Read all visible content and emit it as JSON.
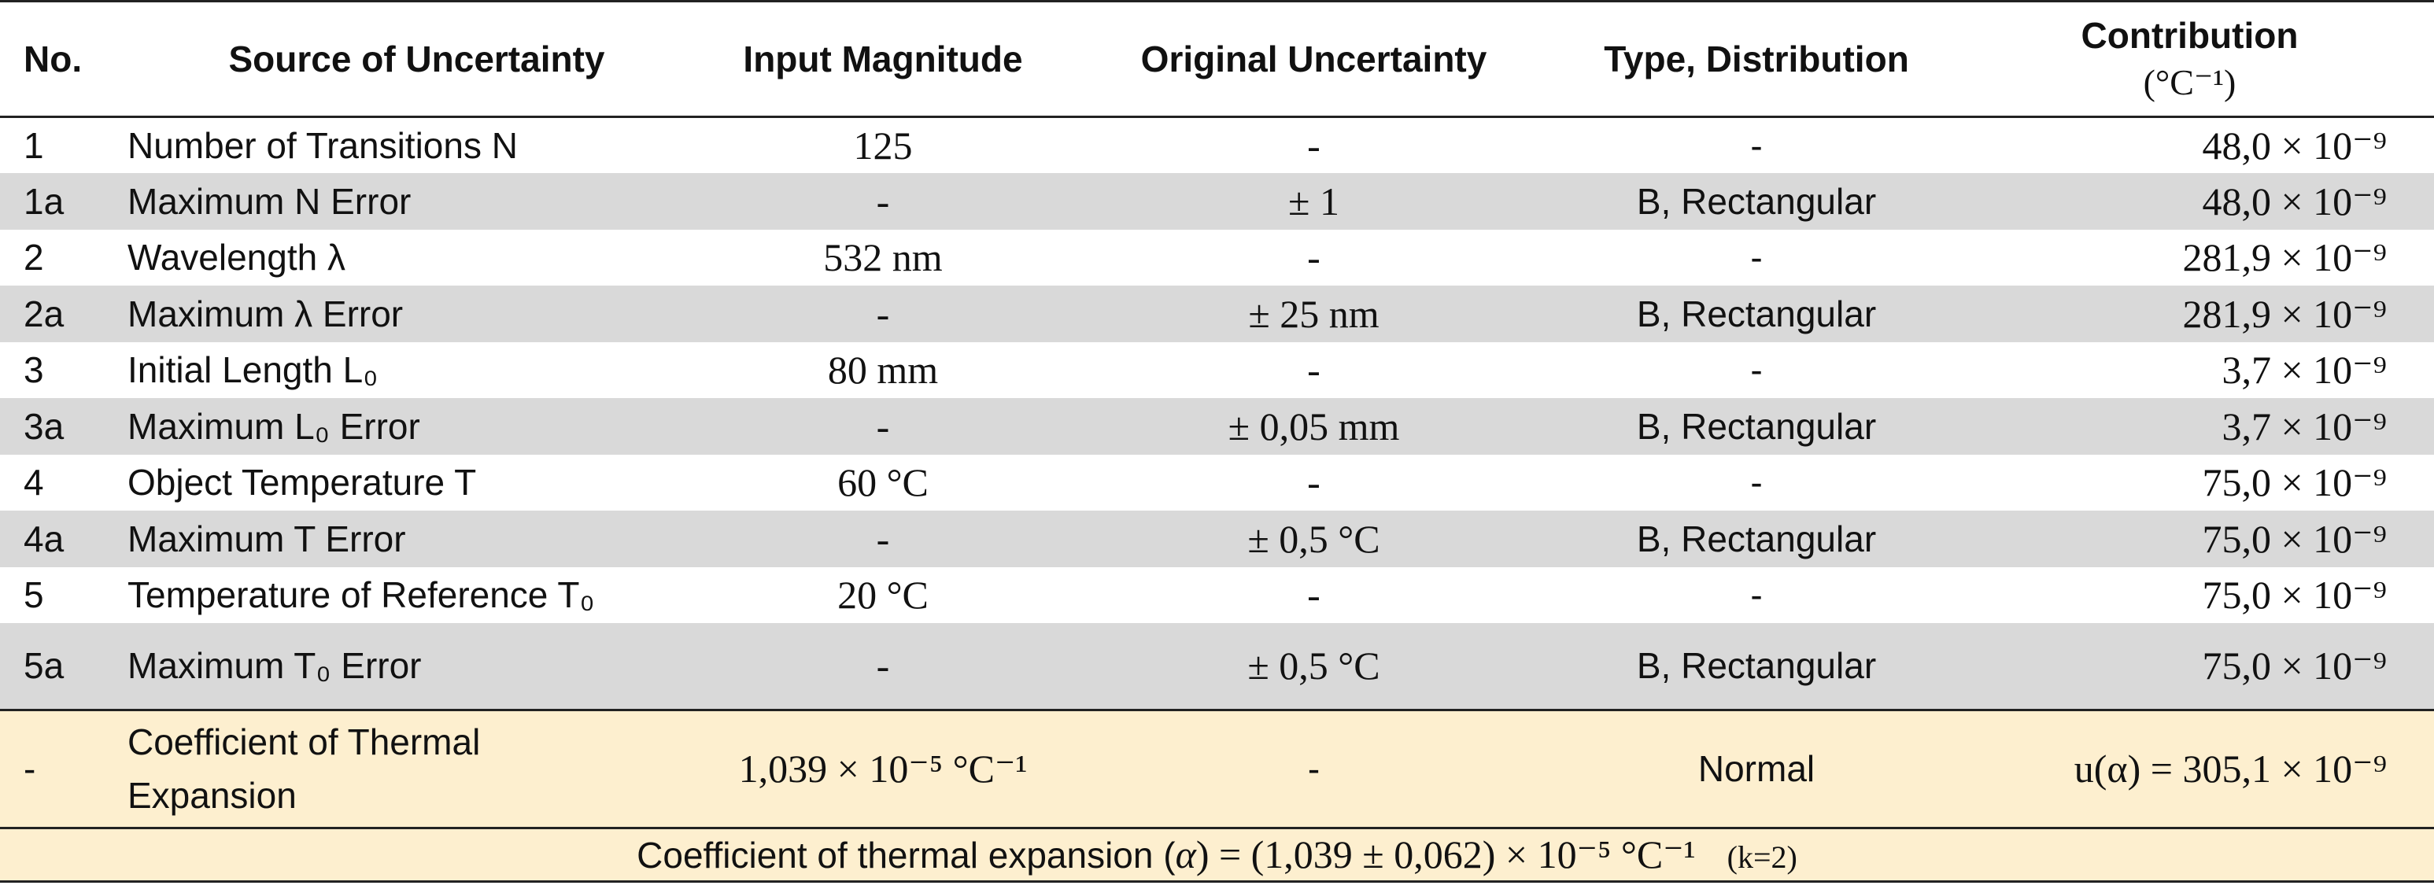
{
  "headers": {
    "no": "No.",
    "source": "Source of Uncertainty",
    "input": "Input Magnitude",
    "original": "Original Uncertainty",
    "type": "Type, Distribution",
    "contribution": "Contribution",
    "contribution_unit": "(°C⁻¹)"
  },
  "rows": [
    {
      "no": "1",
      "source": "Number of Transitions N",
      "input": "125",
      "original": "-",
      "type": "-",
      "contribution": "48,0 × 10⁻⁹"
    },
    {
      "no": "1a",
      "source": "Maximum N Error",
      "input": "-",
      "original": "± 1",
      "type": "B, Rectangular",
      "contribution": "48,0 × 10⁻⁹"
    },
    {
      "no": "2",
      "source": "Wavelength λ",
      "input": "532 nm",
      "original": "-",
      "type": "-",
      "contribution": "281,9 × 10⁻⁹"
    },
    {
      "no": "2a",
      "source": "Maximum λ Error",
      "input": "-",
      "original": "± 25 nm",
      "type": "B, Rectangular",
      "contribution": "281,9 × 10⁻⁹"
    },
    {
      "no": "3",
      "source": "Initial Length L₀",
      "input": "80 mm",
      "original": "-",
      "type": "-",
      "contribution": "3,7 × 10⁻⁹"
    },
    {
      "no": "3a",
      "source": "Maximum L₀ Error",
      "input": "-",
      "original": "± 0,05 mm",
      "type": "B, Rectangular",
      "contribution": "3,7 × 10⁻⁹"
    },
    {
      "no": "4",
      "source": "Object Temperature T",
      "input": "60 °C",
      "original": "-",
      "type": "-",
      "contribution": "75,0 × 10⁻⁹"
    },
    {
      "no": "4a",
      "source": "Maximum T Error",
      "input": "-",
      "original": "± 0,5 °C",
      "type": "B, Rectangular",
      "contribution": "75,0 × 10⁻⁹"
    },
    {
      "no": "5",
      "source": "Temperature of Reference T₀",
      "input": "20 °C",
      "original": "-",
      "type": "-",
      "contribution": "75,0 × 10⁻⁹"
    },
    {
      "no": "5a",
      "source": "Maximum T₀ Error",
      "input": "-",
      "original": "± 0,5 °C",
      "type": "B, Rectangular",
      "contribution": "75,0 × 10⁻⁹"
    }
  ],
  "result": {
    "no": "-",
    "source_line1": "Coefficient of Thermal",
    "source_line2": "Expansion",
    "input": "1,039 × 10⁻⁵ °C⁻¹",
    "original": "-",
    "type": "Normal",
    "contribution": "u(α) = 305,1 × 10⁻⁹"
  },
  "summary": {
    "text_prefix": "Coefficient of thermal expansion (",
    "symbol": "α",
    "text_value": ") = (1,039  ± 0,062) × 10⁻⁵  °C⁻¹",
    "coverage": "(k=2)"
  },
  "colors": {
    "shade": "#d9d9d9",
    "result_bg": "#fdefcf"
  }
}
